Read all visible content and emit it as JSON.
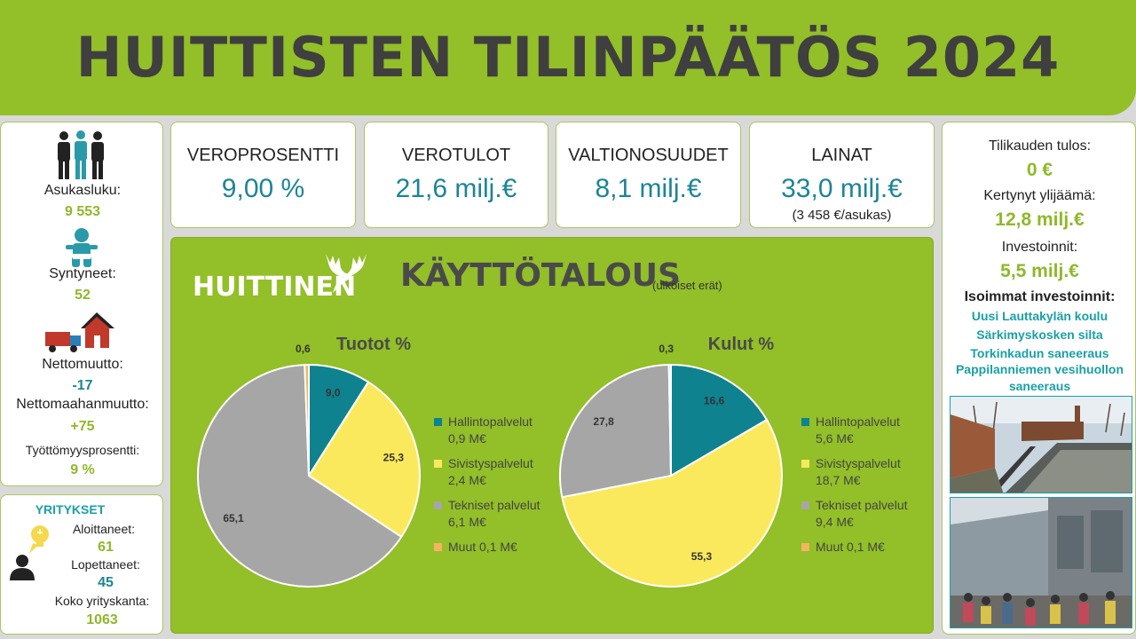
{
  "header": {
    "title": "HUITTISTEN TILINPÄÄTÖS 2024"
  },
  "population": {
    "asukasluku_label": "Asukasluku:",
    "asukasluku_value": "9 553",
    "syntyneet_label": "Syntyneet:",
    "syntyneet_value": "52",
    "nettomuutto_label": "Nettomuutto:",
    "nettomuutto_value": "-17",
    "nettomaahanmuutto_label": "Nettomaahanmuutto:",
    "nettomaahanmuutto_value": "+75",
    "tyottomyys_label": "Työttömyysprosentti:",
    "tyottomyys_value": "9 %"
  },
  "companies": {
    "title": "YRITYKSET",
    "aloittaneet_label": "Aloittaneet:",
    "aloittaneet_value": "61",
    "lopettaneet_label": "Lopettaneet:",
    "lopettaneet_value": "45",
    "kanta_label": "Koko yrityskanta:",
    "kanta_value": "1063"
  },
  "kpis": [
    {
      "label": "VEROPROSENTTI",
      "value": "9,00 %"
    },
    {
      "label": "VEROTULOT",
      "value": "21,6 milj.€"
    },
    {
      "label": "VALTIONOSUUDET",
      "value": "8,1 milj.€"
    },
    {
      "label": "LAINAT",
      "value": "33,0 milj.€",
      "sub": "(3 458 €/asukas)"
    }
  ],
  "operations": {
    "logo": "HUITTINEN",
    "title": "KÄYTTÖTALOUS",
    "subtitle": "(ulkoiset erät)"
  },
  "chart_data": [
    {
      "type": "pie",
      "title": "Tuotot %",
      "categories": [
        "Hallintopalvelut",
        "Sivistyspalvelut",
        "Tekniset palvelut",
        "Muut"
      ],
      "values": [
        9.0,
        25.3,
        65.1,
        0.6
      ],
      "value_labels": [
        "9,0",
        "25,3",
        "65,1",
        "0,6"
      ],
      "legend": [
        "Hallintopalvelut",
        "0,9 M€",
        "Sivistyspalvelut",
        "2,4 M€",
        "Tekniset palvelut",
        "6,1 M€",
        "Muut 0,1 M€"
      ],
      "colors": [
        "#0f8290",
        "#fbe95d",
        "#a6a6a6",
        "#f4b461"
      ],
      "legend_placement": "right"
    },
    {
      "type": "pie",
      "title": "Kulut %",
      "categories": [
        "Hallintopalvelut",
        "Sivistyspalvelut",
        "Tekniset palvelut",
        "Muut"
      ],
      "values": [
        16.6,
        55.3,
        27.8,
        0.3
      ],
      "value_labels": [
        "16,6",
        "55,3",
        "27,8",
        "0,3"
      ],
      "legend": [
        "Hallintopalvelut",
        "5,6 M€",
        "Sivistyspalvelut",
        "18,7 M€",
        "Tekniset palvelut",
        "9,4 M€",
        "Muut 0,1 M€"
      ],
      "colors": [
        "#0f8290",
        "#fbe95d",
        "#a6a6a6",
        "#f4b461"
      ],
      "legend_placement": "right"
    }
  ],
  "results": {
    "tulos_label": "Tilikauden tulos:",
    "tulos_value": "0 €",
    "ylijaama_label": "Kertynyt ylijäämä:",
    "ylijaama_value": "12,8 milj.€",
    "investoinnit_label": "Investoinnit:",
    "investoinnit_value": "5,5 milj.€",
    "isoimmat_label": "Isoimmat investoinnit:",
    "items": [
      "Uusi Lauttakylän koulu",
      "Särkimyskosken silta",
      "Torkinkadun saneeraus",
      "Pappilanniemen vesihuollon",
      "saneeraus"
    ]
  },
  "icons": {
    "people": "people-icon",
    "baby": "baby-icon",
    "move": "truck-house-icon",
    "entrepreneur": "entrepreneur-icon",
    "moose": "moose-antlers-icon"
  }
}
